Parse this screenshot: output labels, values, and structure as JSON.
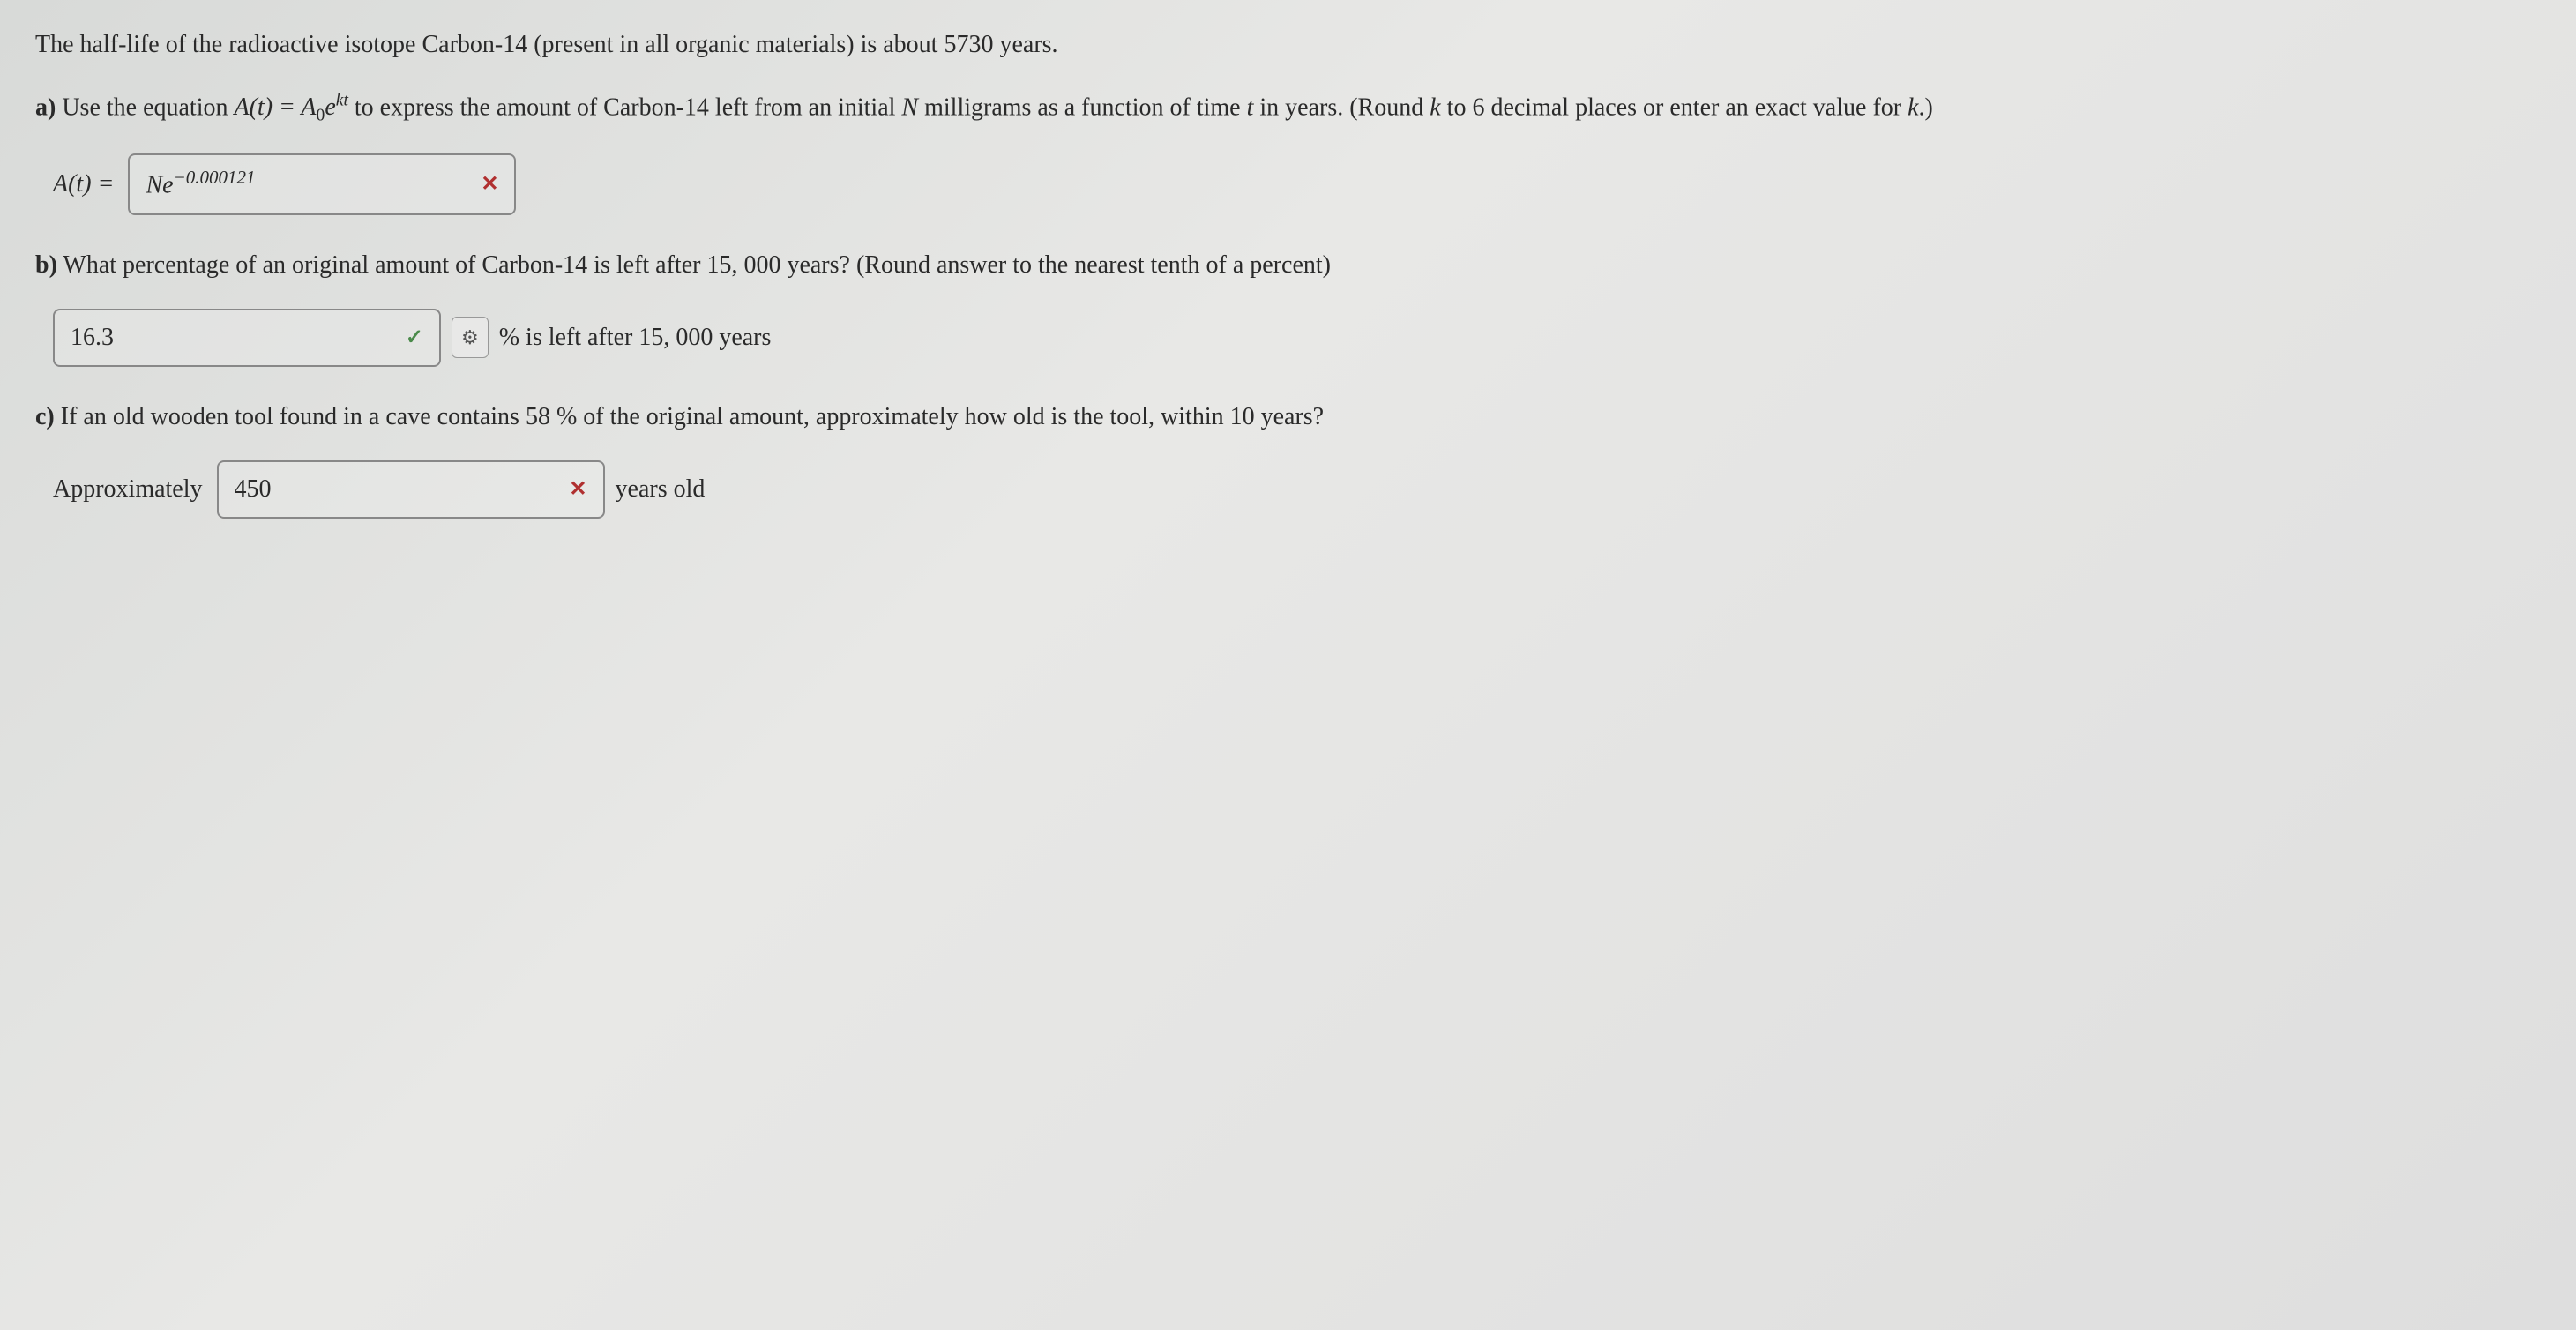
{
  "intro": "The half-life of the radioactive isotope Carbon-14 (present in all organic materials) is about 5730 years.",
  "partA": {
    "label": "a)",
    "text_before_eq": " Use the equation ",
    "equation_lhs": "A(t) = A",
    "equation_sub": "0",
    "equation_e": "e",
    "equation_exp": "kt",
    "text_after_eq": " to express the amount of Carbon-14 left from an initial ",
    "var_N": "N",
    "text_after_N": " milligrams as a function of time ",
    "var_t": "t",
    "text_after_t": " in years. (Round ",
    "var_k": "k",
    "text_after_k": " to 6 decimal places or enter an exact value for ",
    "var_k2": "k",
    "text_end": ".)",
    "answer_prefix": "A(t) = ",
    "answer_N": "N",
    "answer_e": "e",
    "answer_exp": "−0.000121",
    "feedback": "✕"
  },
  "partB": {
    "label": "b)",
    "text": " What percentage of an original amount of Carbon-14 is left after 15, 000 years? (Round answer to the nearest tenth of a percent)",
    "answer_value": "16.3",
    "feedback": "✓",
    "tool_icon": "⚙",
    "suffix": "%  is left after 15, 000 years"
  },
  "partC": {
    "label": "c)",
    "text": " If an old wooden tool found in a cave contains 58 %  of the original amount, approximately how old is the tool, within 10 years?",
    "prefix": "Approximately",
    "answer_value": "450",
    "feedback": "✕",
    "suffix": "years old"
  },
  "colors": {
    "incorrect": "#b03030",
    "correct": "#4a8a4a",
    "text": "#2a2a2a",
    "border": "#888888"
  }
}
